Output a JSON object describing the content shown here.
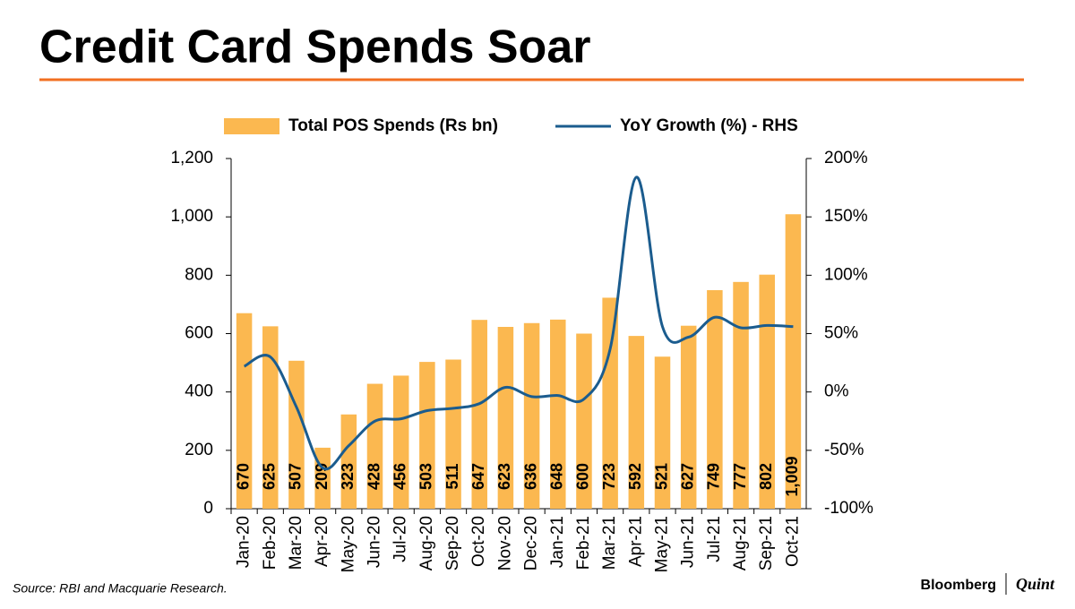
{
  "chart_data": {
    "type": "bar",
    "title": "Credit Card Spends Soar",
    "categories": [
      "Jan-20",
      "Feb-20",
      "Mar-20",
      "Apr-20",
      "May-20",
      "Jun-20",
      "Jul-20",
      "Aug-20",
      "Sep-20",
      "Oct-20",
      "Nov-20",
      "Dec-20",
      "Jan-21",
      "Feb-21",
      "Mar-21",
      "Apr-21",
      "May-21",
      "Jun-21",
      "Jul-21",
      "Aug-21",
      "Sep-21",
      "Oct-21"
    ],
    "series": [
      {
        "name": "Total POS Spends (Rs bn)",
        "color": "#fbb850",
        "type": "bar",
        "values": [
          670,
          625,
          507,
          209,
          323,
          428,
          456,
          503,
          511,
          647,
          623,
          636,
          648,
          600,
          723,
          592,
          521,
          627,
          749,
          777,
          802,
          1009
        ],
        "value_labels": [
          "670",
          "625",
          "507",
          "209",
          "323",
          "428",
          "456",
          "503",
          "511",
          "647",
          "623",
          "636",
          "648",
          "600",
          "723",
          "592",
          "521",
          "627",
          "749",
          "777",
          "802",
          "1,009"
        ]
      },
      {
        "name": "YoY Growth (%) - RHS",
        "color": "#1b5c8e",
        "type": "line",
        "axis": "y2",
        "values": [
          22,
          30,
          -13,
          -65,
          -46,
          -25,
          -23,
          -16,
          -14,
          -10,
          4,
          -4,
          -3,
          -6,
          37,
          184,
          56,
          47,
          64,
          55,
          57,
          56
        ]
      }
    ],
    "ylim": [
      0,
      1200
    ],
    "yticks": [
      0,
      200,
      400,
      600,
      800,
      {
        "value": 1000,
        "label": "1,000"
      },
      {
        "value": 1200,
        "label": "1,200"
      }
    ],
    "y2lim": [
      -100,
      200
    ],
    "y2ticks": [
      {
        "value": -100,
        "label": "-100%"
      },
      {
        "value": -50,
        "label": "-50%"
      },
      {
        "value": 0,
        "label": "0%"
      },
      {
        "value": 50,
        "label": "50%"
      },
      {
        "value": 100,
        "label": "100%"
      },
      {
        "value": 150,
        "label": "150%"
      },
      {
        "value": 200,
        "label": "200%"
      }
    ],
    "source": "Source: RBI and Macquarie Research.",
    "brand": [
      "Bloomberg",
      "Quint"
    ]
  }
}
